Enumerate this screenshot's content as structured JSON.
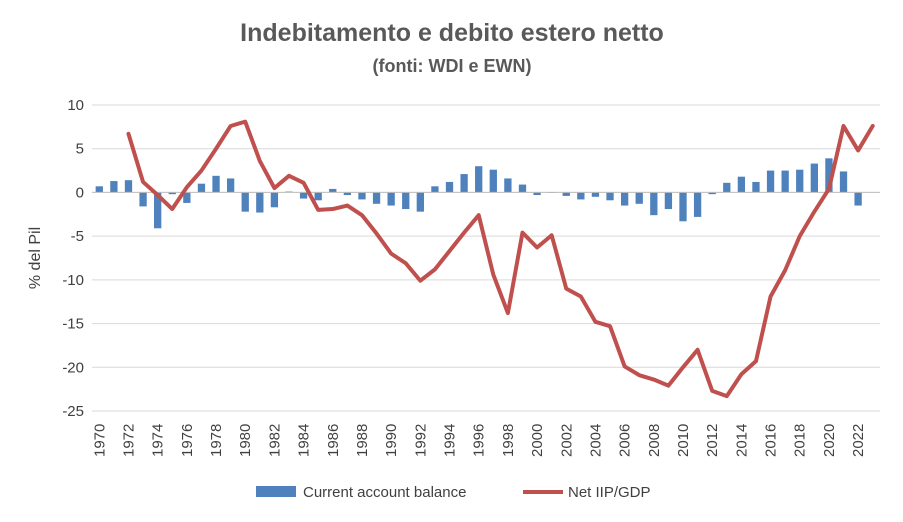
{
  "chart_data": {
    "type": "bar+line",
    "title": "Indebitamento e debito estero netto",
    "subtitle": "(fonti: WDI e EWN)",
    "xlabel": "",
    "ylabel": "% del Pil",
    "ylim": [
      -25,
      10
    ],
    "yticks": [
      "10",
      "5",
      "0",
      "-5",
      "-10",
      "-15",
      "-20",
      "-25"
    ],
    "grid": true,
    "legend_position": "bottom",
    "colors": {
      "bars": "#4f81bd",
      "line": "#c0504d",
      "grid": "#d9d9d9"
    },
    "x": [
      1970,
      1971,
      1972,
      1973,
      1974,
      1975,
      1976,
      1977,
      1978,
      1979,
      1980,
      1981,
      1982,
      1983,
      1984,
      1985,
      1986,
      1987,
      1988,
      1989,
      1990,
      1991,
      1992,
      1993,
      1994,
      1995,
      1996,
      1997,
      1998,
      1999,
      2000,
      2001,
      2002,
      2003,
      2004,
      2005,
      2006,
      2007,
      2008,
      2009,
      2010,
      2011,
      2012,
      2013,
      2014,
      2015,
      2016,
      2017,
      2018,
      2019,
      2020,
      2021,
      2022,
      2023
    ],
    "x_tick_labels": [
      "1970",
      "1972",
      "1974",
      "1976",
      "1978",
      "1980",
      "1982",
      "1984",
      "1986",
      "1988",
      "1990",
      "1992",
      "1994",
      "1996",
      "1998",
      "2000",
      "2002",
      "2004",
      "2006",
      "2008",
      "2010",
      "2012",
      "2014",
      "2016",
      "2018",
      "2020",
      "2022"
    ],
    "series": [
      {
        "name": "Current account balance",
        "kind": "bar",
        "values": [
          0.7,
          1.3,
          1.4,
          -1.6,
          -4.1,
          -0.2,
          -1.2,
          1.0,
          1.9,
          1.6,
          -2.2,
          -2.3,
          -1.7,
          0.1,
          -0.7,
          -0.9,
          0.4,
          -0.3,
          -0.8,
          -1.3,
          -1.5,
          -1.9,
          -2.2,
          0.7,
          1.2,
          2.1,
          3.0,
          2.6,
          1.6,
          0.9,
          -0.3,
          0.0,
          -0.4,
          -0.8,
          -0.5,
          -0.9,
          -1.5,
          -1.3,
          -2.6,
          -1.9,
          -3.3,
          -2.8,
          -0.2,
          1.1,
          1.8,
          1.2,
          2.5,
          2.5,
          2.6,
          3.3,
          3.9,
          2.4,
          -1.5,
          null
        ]
      },
      {
        "name": "Net IIP/GDP",
        "kind": "line",
        "values": [
          null,
          null,
          6.7,
          1.2,
          -0.3,
          -1.9,
          0.6,
          2.5,
          5.0,
          7.6,
          8.1,
          3.6,
          0.5,
          1.9,
          1.1,
          -2.0,
          -1.9,
          -1.5,
          -2.6,
          -4.7,
          -7.0,
          -8.1,
          -10.1,
          -8.8,
          -6.7,
          -4.6,
          -2.6,
          -9.4,
          -13.8,
          -4.6,
          -6.3,
          -4.9,
          -11.0,
          -11.9,
          -14.8,
          -15.3,
          -19.9,
          -20.9,
          -21.4,
          -22.1,
          -20.0,
          -18.0,
          -22.7,
          -23.3,
          -20.8,
          -19.3,
          -11.9,
          -8.9,
          -5.0,
          -2.2,
          0.4,
          7.6,
          4.8,
          7.6
        ]
      }
    ]
  }
}
